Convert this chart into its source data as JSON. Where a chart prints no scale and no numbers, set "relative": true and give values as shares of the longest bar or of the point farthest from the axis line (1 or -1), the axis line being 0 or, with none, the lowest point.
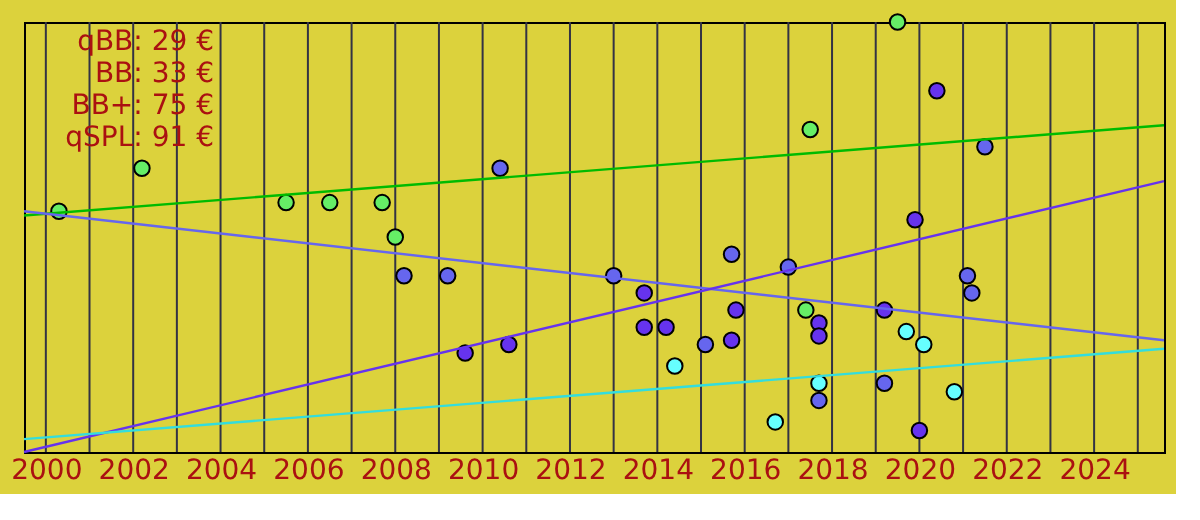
{
  "chart_data": {
    "type": "scatter",
    "relative": true,
    "grid": "x",
    "tick_labels": "x",
    "marker": "circle",
    "xlim": [
      1999.5,
      2025.6
    ],
    "xticks": [
      2000,
      {
        "value": 2001,
        "label": null
      },
      2002,
      {
        "value": 2003,
        "label": null
      },
      2004,
      {
        "value": 2005,
        "label": null
      },
      2006,
      {
        "value": 2007,
        "label": null
      },
      2008,
      {
        "value": 2009,
        "label": null
      },
      2010,
      {
        "value": 2011,
        "label": null
      },
      2012,
      {
        "value": 2013,
        "label": null
      },
      2014,
      {
        "value": 2015,
        "label": null
      },
      2016,
      {
        "value": 2017,
        "label": null
      },
      2018,
      {
        "value": 2019,
        "label": null
      },
      2020,
      {
        "value": 2021,
        "label": null
      },
      2022,
      {
        "value": 2023,
        "label": null
      },
      2024,
      {
        "value": 2025,
        "label": null
      }
    ],
    "annotations": [
      "qBB: 29 €",
      "BB: 33 €",
      "BB+: 75 €",
      "qSPL: 91 €"
    ],
    "series": [
      {
        "color": "#66ee66",
        "x": [
          2000.3,
          2002.2,
          2005.5,
          2006.5,
          2007.7,
          2008.0,
          2017.4,
          2017.5,
          2019.5
        ],
        "values": [
          0.56,
          0.66,
          0.58,
          0.58,
          0.58,
          0.5,
          0.33,
          0.75,
          1.0
        ]
      },
      {
        "color": "#6666ee",
        "x": [
          2008.2,
          2009.2,
          2010.4,
          2013.0,
          2015.1,
          2015.7,
          2017.0,
          2017.7,
          2019.2,
          2021.1,
          2021.2,
          2021.5
        ],
        "values": [
          0.41,
          0.41,
          0.66,
          0.41,
          0.25,
          0.46,
          0.43,
          0.12,
          0.16,
          0.41,
          0.37,
          0.71
        ]
      },
      {
        "color": "#6633ee",
        "x": [
          2009.6,
          2010.6,
          2013.7,
          2013.7,
          2014.2,
          2015.7,
          2015.8,
          2017.7,
          2017.7,
          2019.2,
          2019.9,
          2020.0,
          2020.4
        ],
        "values": [
          0.23,
          0.25,
          0.37,
          0.29,
          0.29,
          0.26,
          0.33,
          0.3,
          0.27,
          0.33,
          0.54,
          0.05,
          0.84
        ]
      },
      {
        "color": "#66ffff",
        "x": [
          2014.4,
          2016.7,
          2017.7,
          2019.7,
          2020.1,
          2020.8
        ],
        "values": [
          0.2,
          0.07,
          0.16,
          0.28,
          0.25,
          0.14
        ]
      },
      {
        "type": "line",
        "marker": "none",
        "color": "#00bb00",
        "x": [
          1999.5,
          2025.6
        ],
        "values": [
          0.55,
          0.76
        ]
      },
      {
        "type": "line",
        "marker": "none",
        "color": "#6666ee",
        "x": [
          1999.5,
          2025.6
        ],
        "values": [
          0.56,
          0.26
        ]
      },
      {
        "type": "line",
        "marker": "none",
        "color": "#6633ee",
        "x": [
          1999.5,
          2025.6
        ],
        "values": [
          0.0,
          0.63
        ]
      },
      {
        "type": "line",
        "marker": "none",
        "color": "#33dddd",
        "x": [
          1999.5,
          2025.6
        ],
        "values": [
          0.03,
          0.24
        ]
      }
    ]
  }
}
